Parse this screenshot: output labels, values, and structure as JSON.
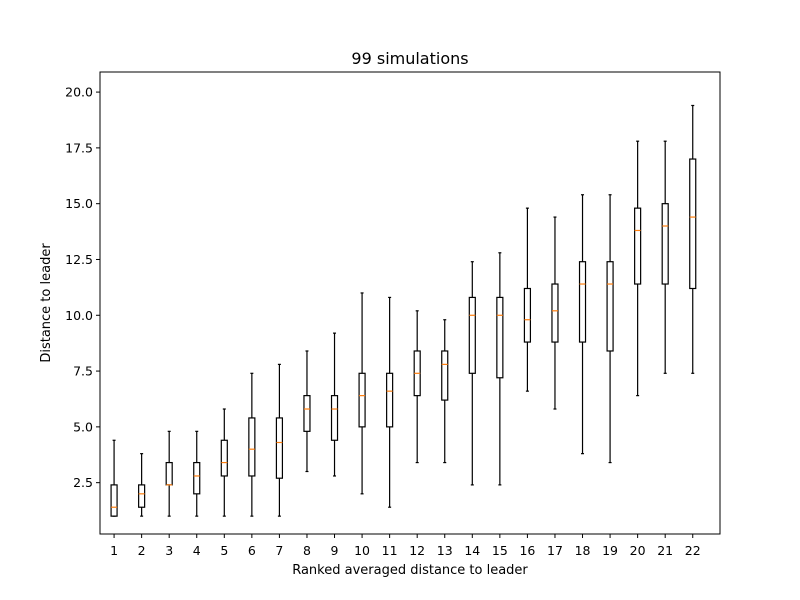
{
  "chart_data": {
    "type": "box",
    "title": "99 simulations",
    "xlabel": "Ranked averaged distance to leader",
    "ylabel": "Distance to leader",
    "ylim": [
      0.2,
      20.9
    ],
    "yticks": [
      2.5,
      5.0,
      7.5,
      10.0,
      12.5,
      15.0,
      17.5,
      20.0
    ],
    "ytick_labels": [
      "2.5",
      "5.0",
      "7.5",
      "10.0",
      "12.5",
      "15.0",
      "17.5",
      "20.0"
    ],
    "categories": [
      "1",
      "2",
      "3",
      "4",
      "5",
      "6",
      "7",
      "8",
      "9",
      "10",
      "11",
      "12",
      "13",
      "14",
      "15",
      "16",
      "17",
      "18",
      "19",
      "20",
      "21",
      "22"
    ],
    "boxes": [
      {
        "whisker_low": 1.0,
        "q1": 1.0,
        "median": 1.4,
        "q3": 2.4,
        "whisker_high": 4.4
      },
      {
        "whisker_low": 1.0,
        "q1": 1.4,
        "median": 2.0,
        "q3": 2.4,
        "whisker_high": 3.8
      },
      {
        "whisker_low": 1.0,
        "q1": 2.4,
        "median": 2.4,
        "q3": 3.4,
        "whisker_high": 4.8
      },
      {
        "whisker_low": 1.0,
        "q1": 2.0,
        "median": 2.8,
        "q3": 3.4,
        "whisker_high": 4.8
      },
      {
        "whisker_low": 1.0,
        "q1": 2.8,
        "median": 3.4,
        "q3": 4.4,
        "whisker_high": 5.8
      },
      {
        "whisker_low": 1.0,
        "q1": 2.8,
        "median": 4.0,
        "q3": 5.4,
        "whisker_high": 7.4
      },
      {
        "whisker_low": 1.0,
        "q1": 2.7,
        "median": 4.3,
        "q3": 5.4,
        "whisker_high": 7.8
      },
      {
        "whisker_low": 3.0,
        "q1": 4.8,
        "median": 5.8,
        "q3": 6.4,
        "whisker_high": 8.4
      },
      {
        "whisker_low": 2.8,
        "q1": 4.4,
        "median": 5.8,
        "q3": 6.4,
        "whisker_high": 9.2
      },
      {
        "whisker_low": 2.0,
        "q1": 5.0,
        "median": 6.4,
        "q3": 7.4,
        "whisker_high": 11.0
      },
      {
        "whisker_low": 1.4,
        "q1": 5.0,
        "median": 6.6,
        "q3": 7.4,
        "whisker_high": 10.8
      },
      {
        "whisker_low": 3.4,
        "q1": 6.4,
        "median": 7.4,
        "q3": 8.4,
        "whisker_high": 10.2
      },
      {
        "whisker_low": 3.4,
        "q1": 6.2,
        "median": 7.8,
        "q3": 8.4,
        "whisker_high": 9.8
      },
      {
        "whisker_low": 2.4,
        "q1": 7.4,
        "median": 10.0,
        "q3": 10.8,
        "whisker_high": 12.4
      },
      {
        "whisker_low": 2.4,
        "q1": 7.2,
        "median": 10.0,
        "q3": 10.8,
        "whisker_high": 12.8
      },
      {
        "whisker_low": 6.6,
        "q1": 8.8,
        "median": 9.8,
        "q3": 11.2,
        "whisker_high": 14.8
      },
      {
        "whisker_low": 5.8,
        "q1": 8.8,
        "median": 10.2,
        "q3": 11.4,
        "whisker_high": 14.4
      },
      {
        "whisker_low": 3.8,
        "q1": 8.8,
        "median": 11.4,
        "q3": 12.4,
        "whisker_high": 15.4
      },
      {
        "whisker_low": 3.4,
        "q1": 8.4,
        "median": 11.4,
        "q3": 12.4,
        "whisker_high": 15.4
      },
      {
        "whisker_low": 6.4,
        "q1": 11.4,
        "median": 13.8,
        "q3": 14.8,
        "whisker_high": 17.8
      },
      {
        "whisker_low": 7.4,
        "q1": 11.4,
        "median": 14.0,
        "q3": 15.0,
        "whisker_high": 17.8
      },
      {
        "whisker_low": 7.4,
        "q1": 11.2,
        "median": 14.4,
        "q3": 17.0,
        "whisker_high": 19.4
      }
    ],
    "grid": false,
    "colors": {
      "box": "#000000",
      "median": "#ff7f0e",
      "whisker": "#000000",
      "background": "#ffffff"
    }
  }
}
